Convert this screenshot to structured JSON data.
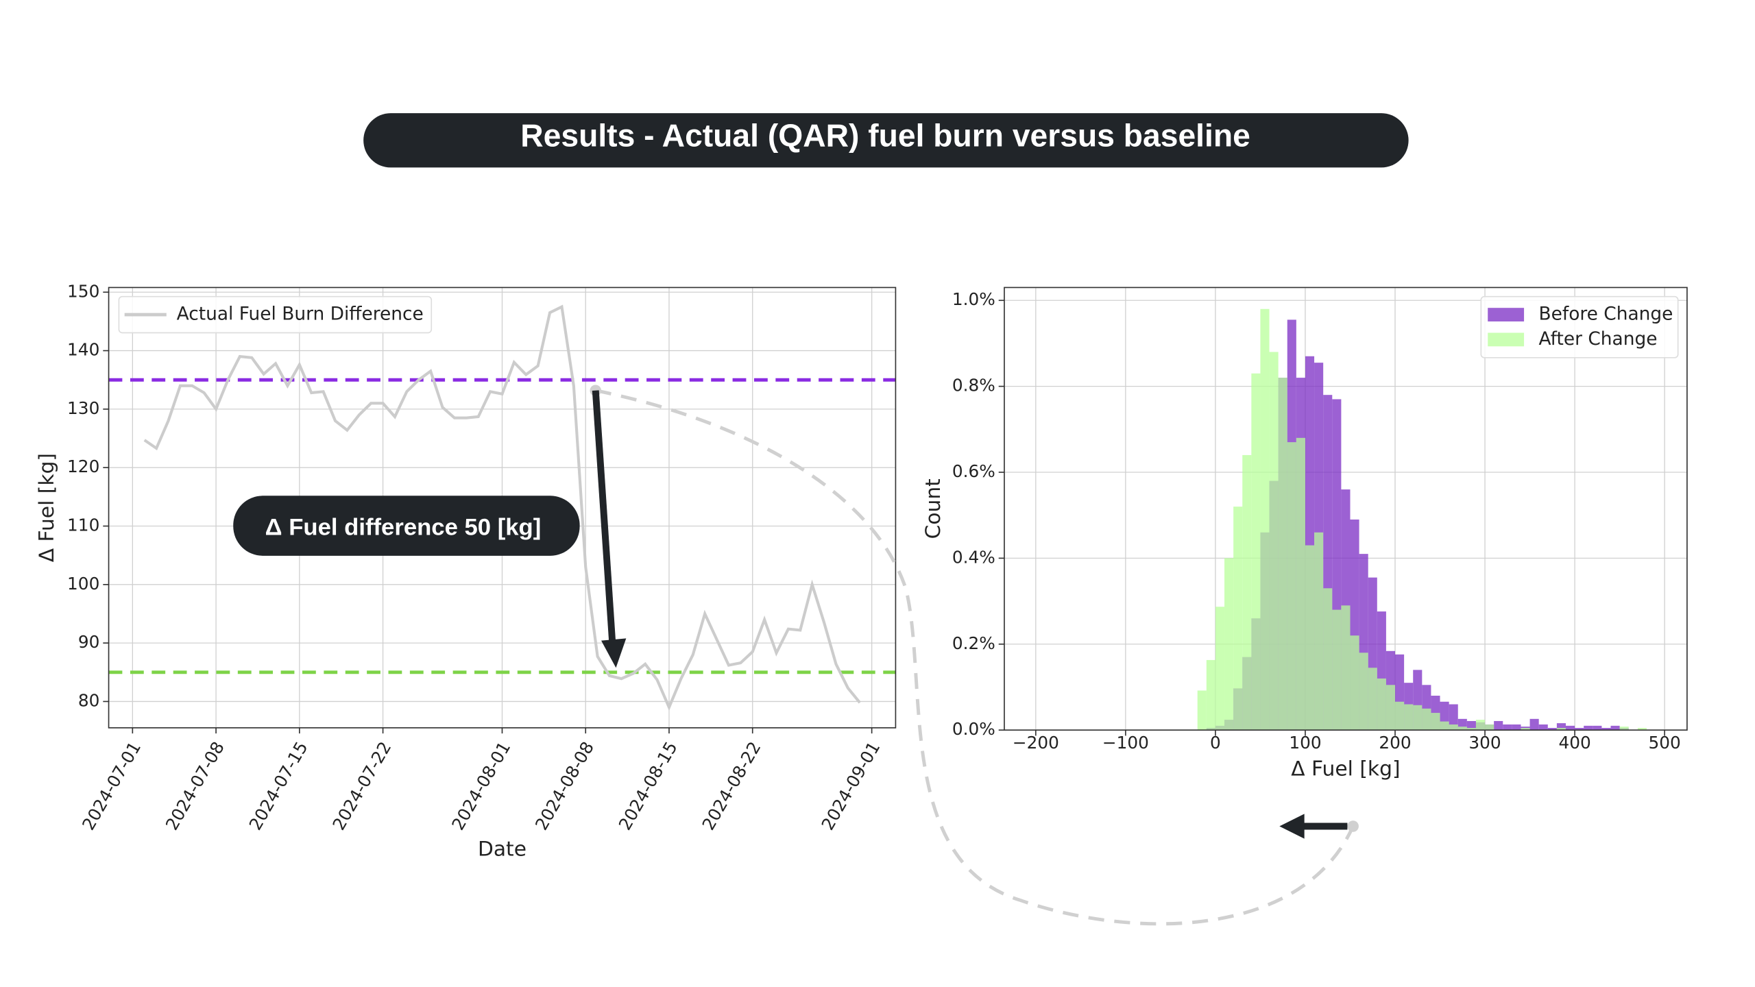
{
  "header": {
    "title": "Results - Actual (QAR) fuel burn versus baseline"
  },
  "chart_data": [
    {
      "type": "line",
      "x_label": "Date",
      "y_label": "Δ Fuel [kg]",
      "annotation": "Δ Fuel difference 50 [kg]",
      "x": [
        "2024-07-02",
        "2024-07-03",
        "2024-07-04",
        "2024-07-05",
        "2024-07-06",
        "2024-07-07",
        "2024-07-08",
        "2024-07-09",
        "2024-07-10",
        "2024-07-11",
        "2024-07-12",
        "2024-07-13",
        "2024-07-14",
        "2024-07-15",
        "2024-07-16",
        "2024-07-17",
        "2024-07-18",
        "2024-07-19",
        "2024-07-20",
        "2024-07-21",
        "2024-07-22",
        "2024-07-23",
        "2024-07-24",
        "2024-07-25",
        "2024-07-26",
        "2024-07-27",
        "2024-07-28",
        "2024-07-29",
        "2024-07-30",
        "2024-07-31",
        "2024-08-01",
        "2024-08-02",
        "2024-08-03",
        "2024-08-04",
        "2024-08-05",
        "2024-08-06",
        "2024-08-07",
        "2024-08-08",
        "2024-08-09",
        "2024-08-10",
        "2024-08-11",
        "2024-08-12",
        "2024-08-13",
        "2024-08-14",
        "2024-08-15",
        "2024-08-16",
        "2024-08-17",
        "2024-08-18",
        "2024-08-19",
        "2024-08-20",
        "2024-08-21",
        "2024-08-22",
        "2024-08-23",
        "2024-08-24",
        "2024-08-25",
        "2024-08-26",
        "2024-08-27",
        "2024-08-28",
        "2024-08-29",
        "2024-08-30",
        "2024-08-31"
      ],
      "series": [
        {
          "name": "Actual Fuel Burn Difference",
          "color": "#cccccc",
          "values": [
            124.7,
            123.3,
            128,
            134,
            134,
            132.8,
            130,
            135,
            139,
            138.8,
            136,
            137.8,
            134,
            137.6,
            132.8,
            133,
            128,
            126.4,
            129,
            131,
            131,
            128.7,
            133,
            135,
            136.5,
            130.3,
            128.5,
            128.5,
            128.7,
            133,
            132.6,
            138,
            135.9,
            137.4,
            146.5,
            147.5,
            134,
            103,
            87.7,
            84.4,
            83.9,
            84.8,
            86.4,
            83.7,
            79,
            83.9,
            88,
            95,
            90.6,
            86.2,
            86.6,
            88.5,
            94,
            88.3,
            92.4,
            92.2,
            100,
            93.5,
            86.4,
            82.3,
            79.8
          ]
        }
      ],
      "hlines": [
        {
          "value": 135,
          "color": "#8a2be2"
        },
        {
          "value": 85,
          "color": "#7ed348"
        }
      ],
      "xlim": [
        "2024-06-29",
        "2024-09-03"
      ],
      "xticks": [
        "2024-07-01",
        "2024-07-08",
        "2024-07-15",
        "2024-07-22",
        "2024-08-01",
        "2024-08-08",
        "2024-08-15",
        "2024-08-22",
        "2024-09-01"
      ],
      "ylim": [
        75.5,
        150.8
      ],
      "yticks": [
        80,
        90,
        100,
        110,
        120,
        130,
        140,
        150
      ],
      "grid": true,
      "legend": "upper left"
    },
    {
      "type": "histogram",
      "x_label": "Δ Fuel [kg]",
      "y_label": "Count",
      "bins": [
        -20,
        -10,
        0,
        10,
        20,
        30,
        40,
        50,
        60,
        70,
        80,
        90,
        100,
        110,
        120,
        130,
        140,
        150,
        160,
        170,
        180,
        190,
        200,
        210,
        220,
        230,
        240,
        250,
        260,
        270,
        280,
        290,
        300,
        310,
        320,
        330,
        340,
        350,
        360,
        370,
        380,
        390,
        400,
        410,
        420,
        430,
        440,
        450,
        460,
        470,
        480,
        490
      ],
      "series": [
        {
          "name": "Before Change",
          "color": "#7b2cc4",
          "values": [
            0,
            0.005,
            0.01,
            0.024,
            0.097,
            0.17,
            0.26,
            0.46,
            0.58,
            0.82,
            0.955,
            0.82,
            0.87,
            0.855,
            0.78,
            0.77,
            0.56,
            0.49,
            0.41,
            0.355,
            0.276,
            0.184,
            0.176,
            0.11,
            0.14,
            0.105,
            0.08,
            0.066,
            0.06,
            0.026,
            0.021,
            0.018,
            0.013,
            0.021,
            0.013,
            0.013,
            0.008,
            0.026,
            0.013,
            0.005,
            0.016,
            0.01,
            0.005,
            0.01,
            0.01,
            0.005,
            0.01,
            0.005,
            0,
            0,
            0
          ]
        },
        {
          "name": "After Change",
          "color": "#b8ff9a",
          "values": [
            0.092,
            0.163,
            0.287,
            0.4,
            0.52,
            0.64,
            0.83,
            0.98,
            0.88,
            0.82,
            0.67,
            0.68,
            0.43,
            0.46,
            0.33,
            0.28,
            0.29,
            0.22,
            0.18,
            0.145,
            0.12,
            0.105,
            0.066,
            0.06,
            0.058,
            0.05,
            0.04,
            0.02,
            0.013,
            0.008,
            0.005,
            0.024,
            0.013,
            0,
            0,
            0,
            0.005,
            0,
            0,
            0,
            0.005,
            0,
            0,
            0,
            0,
            0,
            0,
            0.008,
            0,
            0.005,
            0
          ]
        }
      ],
      "xlim": [
        -235,
        525
      ],
      "xticks": [
        {
          "value": -200,
          "label": "−200"
        },
        {
          "value": -100,
          "label": "−100"
        },
        0,
        100,
        200,
        300,
        400,
        500
      ],
      "ylim": [
        0,
        1.03
      ],
      "yticks": [
        {
          "value": 0,
          "label": "0.0%"
        },
        {
          "value": 0.2,
          "label": "0.2%"
        },
        {
          "value": 0.4,
          "label": "0.4%"
        },
        {
          "value": 0.6,
          "label": "0.6%"
        },
        {
          "value": 0.8,
          "label": "0.8%"
        },
        {
          "value": 1.0,
          "label": "1.0%"
        }
      ],
      "grid": true,
      "legend": "upper right"
    }
  ]
}
